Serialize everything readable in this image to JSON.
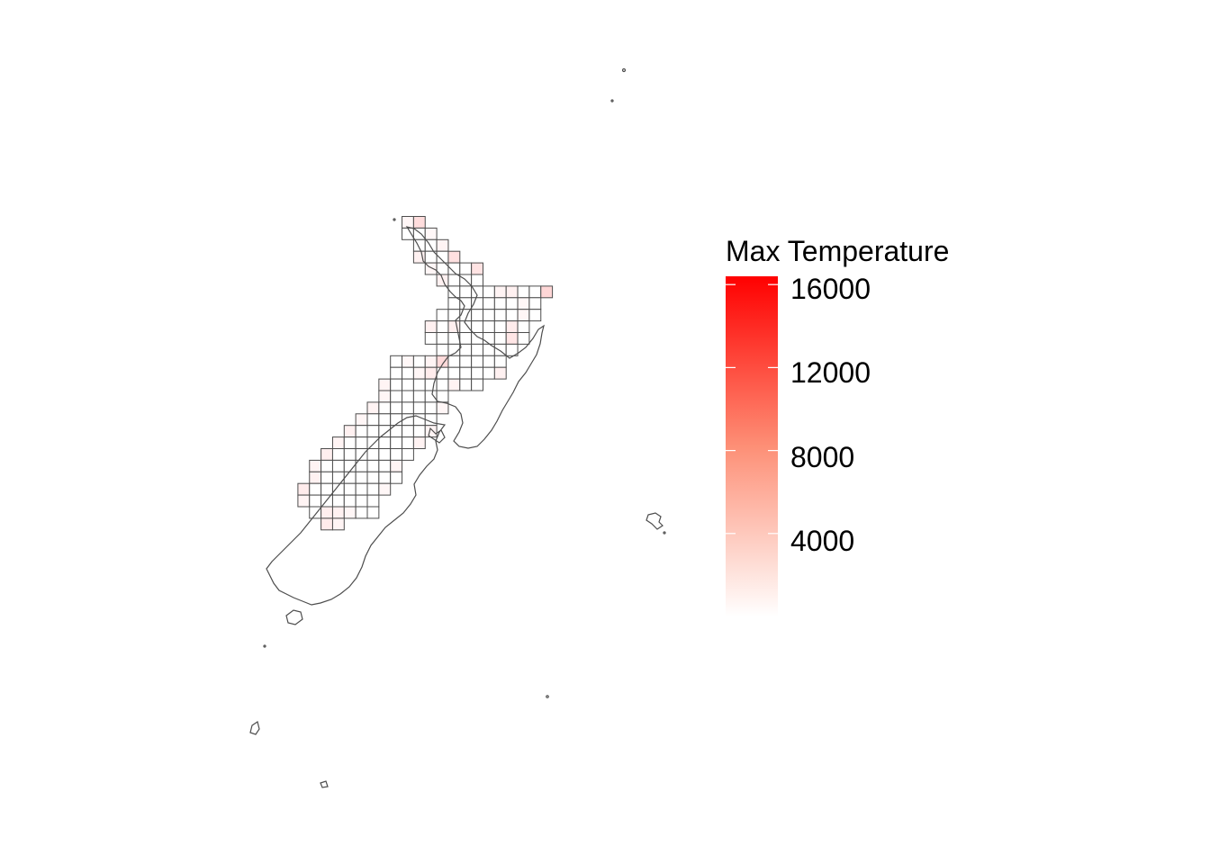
{
  "legend": {
    "title": "Max Temperature",
    "breaks": [
      "16000",
      "12000",
      "8000",
      "4000"
    ],
    "break_values": [
      16000,
      12000,
      8000,
      4000
    ],
    "range": [
      0,
      16400
    ],
    "low_color": "#ffffff",
    "high_color": "#ff0000"
  },
  "colors": {
    "grid_stroke": "#4d4d4d",
    "coast_stroke": "#4d4d4d",
    "background": "#ffffff"
  },
  "grid": {
    "rows": [
      {
        "row": 0,
        "cols": [
          13,
          14
        ]
      },
      {
        "row": 1,
        "cols": [
          13,
          14,
          15
        ]
      },
      {
        "row": 2,
        "cols": [
          14,
          15,
          16
        ]
      },
      {
        "row": 3,
        "cols": [
          14,
          15,
          16,
          17
        ]
      },
      {
        "row": 4,
        "cols": [
          15,
          16,
          17,
          18,
          19
        ]
      },
      {
        "row": 5,
        "cols": [
          16,
          17,
          18,
          19
        ]
      },
      {
        "row": 6,
        "cols": [
          17,
          18,
          19,
          20,
          21,
          22,
          23,
          24,
          25
        ]
      },
      {
        "row": 7,
        "cols": [
          17,
          18,
          19,
          20,
          21,
          22,
          23,
          24
        ]
      },
      {
        "row": 8,
        "cols": [
          16,
          17,
          18,
          19,
          20,
          21,
          22,
          23,
          24
        ]
      },
      {
        "row": 9,
        "cols": [
          15,
          16,
          17,
          18,
          19,
          20,
          21,
          22,
          23
        ]
      },
      {
        "row": 10,
        "cols": [
          15,
          16,
          17,
          18,
          19,
          20,
          21,
          22,
          23
        ]
      },
      {
        "row": 11,
        "cols": [
          16,
          17,
          18,
          19,
          20,
          21,
          22
        ]
      },
      {
        "row": 12,
        "cols": [
          12,
          13,
          14,
          15,
          16,
          17,
          18,
          19,
          20,
          21
        ]
      },
      {
        "row": 13,
        "cols": [
          12,
          13,
          14,
          15,
          16,
          17,
          18,
          19,
          20,
          21
        ]
      },
      {
        "row": 14,
        "cols": [
          11,
          12,
          13,
          14,
          15,
          16,
          17,
          18,
          19
        ]
      },
      {
        "row": 15,
        "cols": [
          11,
          12,
          13,
          14,
          15,
          16
        ]
      },
      {
        "row": 16,
        "cols": [
          10,
          11,
          12,
          13,
          14,
          15,
          16
        ]
      },
      {
        "row": 17,
        "cols": [
          9,
          10,
          11,
          12,
          13,
          14,
          15
        ]
      },
      {
        "row": 18,
        "cols": [
          8,
          9,
          10,
          11,
          12,
          13,
          14,
          15
        ]
      },
      {
        "row": 19,
        "cols": [
          7,
          8,
          9,
          10,
          11,
          12,
          13,
          14
        ]
      },
      {
        "row": 20,
        "cols": [
          6,
          7,
          8,
          9,
          10,
          11,
          12,
          13
        ]
      },
      {
        "row": 21,
        "cols": [
          5,
          6,
          7,
          8,
          9,
          10,
          11,
          12
        ]
      },
      {
        "row": 22,
        "cols": [
          5,
          6,
          7,
          8,
          9,
          10,
          11,
          12
        ]
      },
      {
        "row": 23,
        "cols": [
          4,
          5,
          6,
          7,
          8,
          9,
          10,
          11
        ]
      },
      {
        "row": 24,
        "cols": [
          4,
          5,
          6,
          7,
          8,
          9,
          10
        ]
      },
      {
        "row": 25,
        "cols": [
          5,
          6,
          7,
          8,
          9,
          10
        ]
      },
      {
        "row": 26,
        "cols": [
          6,
          7
        ]
      }
    ],
    "shaded": [
      {
        "row": 0,
        "col": 14,
        "value": 2200
      },
      {
        "row": 0,
        "col": 13,
        "value": 600
      },
      {
        "row": 1,
        "col": 15,
        "value": 500
      },
      {
        "row": 2,
        "col": 16,
        "value": 700
      },
      {
        "row": 3,
        "col": 14,
        "value": 900
      },
      {
        "row": 3,
        "col": 17,
        "value": 2000
      },
      {
        "row": 4,
        "col": 19,
        "value": 1800
      },
      {
        "row": 4,
        "col": 15,
        "value": 600
      },
      {
        "row": 5,
        "col": 16,
        "value": 900
      },
      {
        "row": 6,
        "col": 25,
        "value": 2600
      },
      {
        "row": 6,
        "col": 21,
        "value": 700
      },
      {
        "row": 6,
        "col": 22,
        "value": 900
      },
      {
        "row": 7,
        "col": 23,
        "value": 500
      },
      {
        "row": 8,
        "col": 23,
        "value": 600
      },
      {
        "row": 9,
        "col": 15,
        "value": 900
      },
      {
        "row": 9,
        "col": 17,
        "value": 1000
      },
      {
        "row": 9,
        "col": 22,
        "value": 1200
      },
      {
        "row": 10,
        "col": 22,
        "value": 1600
      },
      {
        "row": 12,
        "col": 16,
        "value": 2400
      },
      {
        "row": 12,
        "col": 13,
        "value": 500
      },
      {
        "row": 12,
        "col": 15,
        "value": 700
      },
      {
        "row": 13,
        "col": 14,
        "value": 600
      },
      {
        "row": 13,
        "col": 15,
        "value": 1200
      },
      {
        "row": 13,
        "col": 21,
        "value": 900
      },
      {
        "row": 14,
        "col": 11,
        "value": 700
      },
      {
        "row": 14,
        "col": 17,
        "value": 800
      },
      {
        "row": 15,
        "col": 11,
        "value": 600
      },
      {
        "row": 16,
        "col": 10,
        "value": 800
      },
      {
        "row": 16,
        "col": 16,
        "value": 600
      },
      {
        "row": 17,
        "col": 9,
        "value": 600
      },
      {
        "row": 18,
        "col": 8,
        "value": 900
      },
      {
        "row": 18,
        "col": 15,
        "value": 700
      },
      {
        "row": 19,
        "col": 7,
        "value": 700
      },
      {
        "row": 19,
        "col": 14,
        "value": 800
      },
      {
        "row": 20,
        "col": 6,
        "value": 1000
      },
      {
        "row": 21,
        "col": 5,
        "value": 800
      },
      {
        "row": 21,
        "col": 12,
        "value": 700
      },
      {
        "row": 22,
        "col": 5,
        "value": 900
      },
      {
        "row": 23,
        "col": 4,
        "value": 1200
      },
      {
        "row": 23,
        "col": 11,
        "value": 500
      },
      {
        "row": 24,
        "col": 4,
        "value": 700
      },
      {
        "row": 25,
        "col": 6,
        "value": 1100
      },
      {
        "row": 25,
        "col": 7,
        "value": 900
      },
      {
        "row": 25,
        "col": 8,
        "value": 600
      },
      {
        "row": 26,
        "col": 6,
        "value": 1300
      },
      {
        "row": 26,
        "col": 7,
        "value": 700
      }
    ]
  }
}
